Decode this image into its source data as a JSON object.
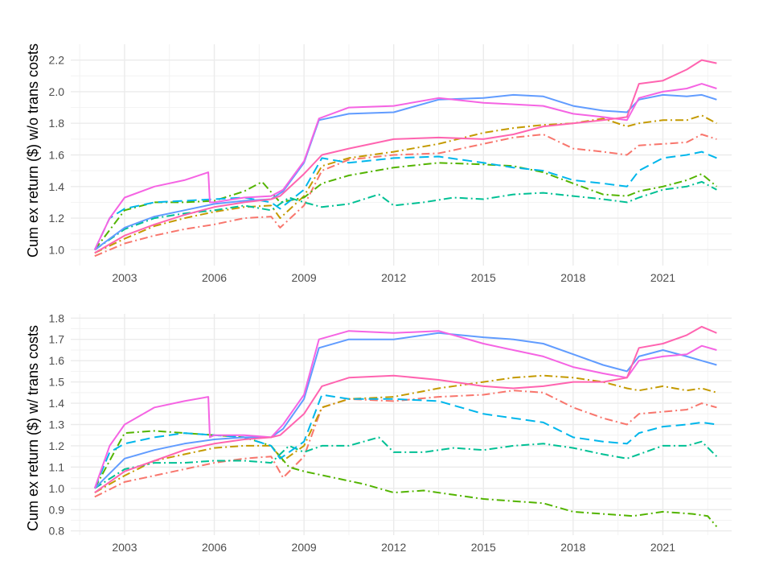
{
  "chart_data": [
    {
      "type": "line",
      "ylabel": "Cum ex return ($) w/o trans costs",
      "xlabel": "",
      "xlim": [
        2001.2,
        2023.3
      ],
      "ylim": [
        0.9,
        2.3
      ],
      "xticks": [
        2003,
        2006,
        2009,
        2012,
        2015,
        2018,
        2021
      ],
      "xtick_labels": [
        "2003",
        "2006",
        "2009",
        "2012",
        "2015",
        "2018",
        "2021"
      ],
      "yticks": [
        1.0,
        1.2,
        1.4,
        1.6,
        1.8,
        2.0,
        2.2
      ],
      "ytick_labels": [
        "1.0",
        "1.2",
        "1.4",
        "1.6",
        "1.8",
        "2.0",
        "2.2"
      ],
      "grid": true,
      "legend": "none",
      "series": [
        {
          "color": "#f8766d",
          "dash": "dashdot",
          "x": [
            2002.0,
            2003,
            2004,
            2005,
            2006,
            2007,
            2007.9,
            2008.2,
            2009.0,
            2009.6,
            2010.5,
            2012,
            2013.5,
            2015,
            2016,
            2017,
            2018,
            2019,
            2019.8,
            2020.2,
            2021,
            2021.8,
            2022.3,
            2022.8
          ],
          "y": [
            0.96,
            1.04,
            1.09,
            1.13,
            1.16,
            1.2,
            1.21,
            1.14,
            1.28,
            1.5,
            1.57,
            1.6,
            1.61,
            1.67,
            1.71,
            1.73,
            1.64,
            1.62,
            1.6,
            1.66,
            1.67,
            1.68,
            1.73,
            1.7
          ]
        },
        {
          "color": "#c49a00",
          "dash": "dashdot",
          "x": [
            2002.0,
            2003,
            2004,
            2005,
            2006,
            2007,
            2007.9,
            2008.2,
            2009.0,
            2009.6,
            2010.5,
            2012,
            2013.5,
            2015,
            2016,
            2017,
            2018,
            2019,
            2019.8,
            2020.2,
            2021,
            2021.8,
            2022.3,
            2022.8
          ],
          "y": [
            0.98,
            1.07,
            1.15,
            1.2,
            1.24,
            1.27,
            1.28,
            1.2,
            1.34,
            1.53,
            1.58,
            1.62,
            1.67,
            1.74,
            1.77,
            1.79,
            1.8,
            1.83,
            1.78,
            1.8,
            1.82,
            1.82,
            1.85,
            1.8
          ]
        },
        {
          "color": "#53b400",
          "dash": "dashdot",
          "x": [
            2002.0,
            2003,
            2004,
            2005,
            2006,
            2007,
            2007.6,
            2008.2,
            2009.0,
            2009.6,
            2010.5,
            2012,
            2013.5,
            2015,
            2016,
            2017,
            2018,
            2019,
            2019.8,
            2020.2,
            2021,
            2021.8,
            2022.3,
            2022.8
          ],
          "y": [
            1.0,
            1.25,
            1.3,
            1.3,
            1.31,
            1.37,
            1.43,
            1.3,
            1.33,
            1.42,
            1.47,
            1.52,
            1.55,
            1.54,
            1.53,
            1.49,
            1.42,
            1.35,
            1.34,
            1.37,
            1.4,
            1.44,
            1.48,
            1.4
          ]
        },
        {
          "color": "#00c094",
          "dash": "dashdot",
          "x": [
            2002.0,
            2003,
            2004,
            2005,
            2006,
            2007,
            2007.9,
            2008.5,
            2009.0,
            2009.6,
            2010.5,
            2011.5,
            2012,
            2013,
            2014,
            2015,
            2016,
            2017,
            2018,
            2019,
            2019.8,
            2020.2,
            2021,
            2021.8,
            2022.3,
            2022.8
          ],
          "y": [
            1.0,
            1.13,
            1.2,
            1.23,
            1.25,
            1.28,
            1.25,
            1.33,
            1.3,
            1.27,
            1.29,
            1.35,
            1.28,
            1.3,
            1.33,
            1.32,
            1.35,
            1.36,
            1.34,
            1.32,
            1.3,
            1.33,
            1.38,
            1.4,
            1.43,
            1.38
          ]
        },
        {
          "color": "#00b6eb",
          "dash": "dashed",
          "x": [
            2002.0,
            2002.5,
            2003,
            2004,
            2005,
            2006,
            2007,
            2007.9,
            2008.2,
            2009.0,
            2009.6,
            2010.5,
            2012,
            2013.5,
            2015,
            2016,
            2017,
            2018,
            2019,
            2019.8,
            2020.2,
            2021,
            2021.8,
            2022.3,
            2022.8
          ],
          "y": [
            1.0,
            1.2,
            1.26,
            1.3,
            1.31,
            1.32,
            1.33,
            1.3,
            1.26,
            1.38,
            1.58,
            1.55,
            1.58,
            1.59,
            1.55,
            1.52,
            1.5,
            1.44,
            1.42,
            1.4,
            1.5,
            1.58,
            1.6,
            1.62,
            1.58
          ]
        },
        {
          "color": "#619cff",
          "dash": "solid",
          "x": [
            2002.0,
            2003,
            2004,
            2005,
            2006,
            2007,
            2007.9,
            2008.3,
            2009.0,
            2009.5,
            2010.5,
            2012,
            2013.5,
            2015,
            2016,
            2017,
            2018,
            2019,
            2019.8,
            2020.2,
            2021,
            2021.8,
            2022.3,
            2022.8
          ],
          "y": [
            1.0,
            1.14,
            1.21,
            1.25,
            1.29,
            1.31,
            1.32,
            1.37,
            1.55,
            1.82,
            1.86,
            1.87,
            1.95,
            1.96,
            1.98,
            1.97,
            1.91,
            1.88,
            1.87,
            1.95,
            1.98,
            1.97,
            1.98,
            1.95
          ]
        },
        {
          "color": "#f564e3",
          "dash": "solid",
          "x": [
            2002.0,
            2002.5,
            2003,
            2004,
            2005,
            2005.8,
            2005.85,
            2006,
            2007,
            2007.9,
            2008.3,
            2009.0,
            2009.5,
            2010.5,
            2012,
            2013.5,
            2015,
            2016,
            2017,
            2018,
            2019,
            2019.8,
            2020.2,
            2021,
            2021.8,
            2022.3,
            2022.8
          ],
          "y": [
            1.0,
            1.2,
            1.33,
            1.4,
            1.44,
            1.49,
            1.3,
            1.3,
            1.33,
            1.34,
            1.38,
            1.56,
            1.83,
            1.9,
            1.91,
            1.96,
            1.93,
            1.92,
            1.91,
            1.86,
            1.84,
            1.82,
            1.96,
            2.0,
            2.02,
            2.05,
            2.02
          ]
        },
        {
          "color": "#ff64b0",
          "dash": "solid",
          "x": [
            2002.0,
            2003,
            2004,
            2005,
            2006,
            2007,
            2007.9,
            2008.2,
            2009.0,
            2009.6,
            2010.5,
            2012,
            2013.5,
            2015,
            2016,
            2017,
            2018,
            2019,
            2019.8,
            2020.2,
            2021,
            2021.8,
            2022.3,
            2022.8
          ],
          "y": [
            0.98,
            1.09,
            1.16,
            1.22,
            1.27,
            1.3,
            1.32,
            1.34,
            1.48,
            1.6,
            1.64,
            1.7,
            1.71,
            1.7,
            1.73,
            1.78,
            1.8,
            1.82,
            1.84,
            2.05,
            2.07,
            2.14,
            2.2,
            2.18
          ]
        }
      ]
    },
    {
      "type": "line",
      "ylabel": "Cum ex return ($) w/ trans costs",
      "xlabel": "",
      "xlim": [
        2001.2,
        2023.3
      ],
      "ylim": [
        0.78,
        1.82
      ],
      "xticks": [
        2003,
        2006,
        2009,
        2012,
        2015,
        2018,
        2021
      ],
      "xtick_labels": [
        "2003",
        "2006",
        "2009",
        "2012",
        "2015",
        "2018",
        "2021"
      ],
      "yticks": [
        0.8,
        0.9,
        1.0,
        1.1,
        1.2,
        1.3,
        1.4,
        1.5,
        1.6,
        1.7,
        1.8
      ],
      "ytick_labels": [
        "0.8",
        "0.9",
        "1.0",
        "1.1",
        "1.2",
        "1.3",
        "1.4",
        "1.5",
        "1.6",
        "1.7",
        "1.8"
      ],
      "grid": true,
      "legend": "none",
      "series": [
        {
          "color": "#f8766d",
          "dash": "dashdot",
          "x": [
            2002.0,
            2003,
            2004,
            2005,
            2006,
            2007,
            2007.9,
            2008.3,
            2009.0,
            2009.6,
            2010.5,
            2012,
            2013.5,
            2015,
            2016,
            2017,
            2018,
            2019,
            2019.8,
            2020.2,
            2021,
            2021.8,
            2022.3,
            2022.8
          ],
          "y": [
            0.96,
            1.03,
            1.06,
            1.09,
            1.12,
            1.14,
            1.15,
            1.05,
            1.15,
            1.38,
            1.42,
            1.41,
            1.43,
            1.44,
            1.46,
            1.45,
            1.38,
            1.33,
            1.3,
            1.35,
            1.36,
            1.37,
            1.4,
            1.38
          ]
        },
        {
          "color": "#c49a00",
          "dash": "dashdot",
          "x": [
            2002.0,
            2003,
            2004,
            2005,
            2006,
            2007,
            2007.9,
            2008.3,
            2009.0,
            2009.6,
            2010.5,
            2012,
            2013.5,
            2015,
            2016,
            2017,
            2018,
            2019,
            2019.8,
            2020.2,
            2021,
            2021.8,
            2022.3,
            2022.8
          ],
          "y": [
            0.98,
            1.06,
            1.13,
            1.16,
            1.19,
            1.2,
            1.2,
            1.13,
            1.2,
            1.38,
            1.42,
            1.43,
            1.47,
            1.5,
            1.52,
            1.53,
            1.52,
            1.5,
            1.47,
            1.46,
            1.48,
            1.46,
            1.47,
            1.45
          ]
        },
        {
          "color": "#53b400",
          "dash": "dashdot",
          "x": [
            2002.0,
            2003,
            2004,
            2005,
            2006,
            2007,
            2007.9,
            2008.5,
            2009.0,
            2010,
            2011,
            2012,
            2013,
            2014,
            2015,
            2016,
            2017,
            2018,
            2019,
            2020,
            2021,
            2022,
            2022.5,
            2022.8
          ],
          "y": [
            1.0,
            1.26,
            1.27,
            1.26,
            1.25,
            1.24,
            1.2,
            1.1,
            1.08,
            1.05,
            1.02,
            0.98,
            0.99,
            0.97,
            0.95,
            0.94,
            0.93,
            0.89,
            0.88,
            0.87,
            0.89,
            0.88,
            0.87,
            0.82
          ]
        },
        {
          "color": "#00c094",
          "dash": "dashdot",
          "x": [
            2002.0,
            2003,
            2004,
            2005,
            2006,
            2007,
            2007.9,
            2008.5,
            2009.0,
            2009.6,
            2010.5,
            2011.5,
            2012,
            2013,
            2014,
            2015,
            2016,
            2017,
            2018,
            2019,
            2019.8,
            2020.2,
            2021,
            2021.8,
            2022.3,
            2022.8
          ],
          "y": [
            1.0,
            1.09,
            1.12,
            1.12,
            1.13,
            1.13,
            1.12,
            1.2,
            1.17,
            1.2,
            1.2,
            1.24,
            1.17,
            1.17,
            1.19,
            1.18,
            1.2,
            1.21,
            1.19,
            1.16,
            1.14,
            1.16,
            1.2,
            1.2,
            1.22,
            1.15
          ]
        },
        {
          "color": "#00b6eb",
          "dash": "dashed",
          "x": [
            2002.0,
            2002.5,
            2003,
            2004,
            2005,
            2006,
            2007,
            2007.9,
            2008.2,
            2009.0,
            2009.6,
            2010.5,
            2012,
            2013.5,
            2015,
            2016,
            2017,
            2018,
            2019,
            2019.8,
            2020.2,
            2021,
            2021.8,
            2022.3,
            2022.8
          ],
          "y": [
            1.0,
            1.17,
            1.21,
            1.24,
            1.26,
            1.25,
            1.24,
            1.2,
            1.14,
            1.22,
            1.44,
            1.42,
            1.42,
            1.41,
            1.35,
            1.33,
            1.31,
            1.24,
            1.22,
            1.21,
            1.26,
            1.29,
            1.3,
            1.31,
            1.3
          ]
        },
        {
          "color": "#619cff",
          "dash": "solid",
          "x": [
            2002.0,
            2003,
            2004,
            2005,
            2006,
            2007,
            2007.9,
            2008.3,
            2009.0,
            2009.5,
            2010.5,
            2012,
            2013.5,
            2015,
            2016,
            2017,
            2018,
            2019,
            2019.8,
            2020.2,
            2021,
            2021.8,
            2022.3,
            2022.8
          ],
          "y": [
            1.0,
            1.14,
            1.18,
            1.21,
            1.23,
            1.24,
            1.24,
            1.28,
            1.42,
            1.66,
            1.7,
            1.7,
            1.73,
            1.71,
            1.7,
            1.68,
            1.63,
            1.58,
            1.55,
            1.62,
            1.65,
            1.62,
            1.6,
            1.58
          ]
        },
        {
          "color": "#f564e3",
          "dash": "solid",
          "x": [
            2002.0,
            2002.5,
            2003,
            2004,
            2005,
            2005.8,
            2005.85,
            2006,
            2007,
            2007.9,
            2008.3,
            2009.0,
            2009.5,
            2010.5,
            2012,
            2013.5,
            2015,
            2016,
            2017,
            2018,
            2019,
            2019.8,
            2020.2,
            2021,
            2021.8,
            2022.3,
            2022.8
          ],
          "y": [
            1.0,
            1.2,
            1.3,
            1.38,
            1.41,
            1.43,
            1.24,
            1.25,
            1.25,
            1.24,
            1.3,
            1.44,
            1.7,
            1.74,
            1.73,
            1.74,
            1.68,
            1.65,
            1.62,
            1.57,
            1.54,
            1.52,
            1.6,
            1.62,
            1.63,
            1.67,
            1.65
          ]
        },
        {
          "color": "#ff64b0",
          "dash": "solid",
          "x": [
            2002.0,
            2003,
            2004,
            2005,
            2006,
            2007,
            2007.9,
            2008.2,
            2009.0,
            2009.6,
            2010.5,
            2012,
            2013.5,
            2015,
            2016,
            2017,
            2018,
            2019,
            2019.8,
            2020.2,
            2021,
            2021.8,
            2022.3,
            2022.8
          ],
          "y": [
            0.98,
            1.08,
            1.13,
            1.18,
            1.21,
            1.23,
            1.24,
            1.25,
            1.35,
            1.48,
            1.52,
            1.53,
            1.51,
            1.48,
            1.47,
            1.48,
            1.5,
            1.5,
            1.52,
            1.66,
            1.68,
            1.72,
            1.76,
            1.73
          ]
        }
      ]
    }
  ]
}
